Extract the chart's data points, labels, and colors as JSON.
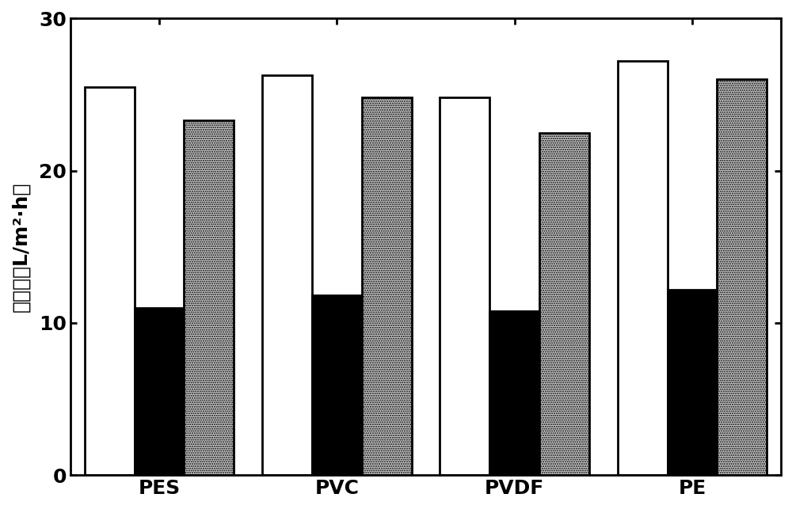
{
  "categories": [
    "PES",
    "PVC",
    "PVDF",
    "PE"
  ],
  "series": {
    "white": [
      25.5,
      26.3,
      24.8,
      27.2
    ],
    "black": [
      11.0,
      11.8,
      10.8,
      12.2
    ],
    "gray": [
      23.3,
      24.8,
      22.5,
      26.0
    ]
  },
  "bar_colors": [
    "#ffffff",
    "#000000",
    "#c8c8c8"
  ],
  "bar_edge_colors": [
    "#000000",
    "#000000",
    "#000000"
  ],
  "ylabel": "膜通量（L/m²·h）",
  "ylim": [
    0,
    30
  ],
  "yticks": [
    0,
    10,
    20,
    30
  ],
  "bar_width": 0.28,
  "label_fontsize": 18,
  "tick_fontsize": 18,
  "background_color": "#ffffff",
  "gray_hatch": "......",
  "linewidth": 2.0,
  "edge_linewidth": 2.0
}
